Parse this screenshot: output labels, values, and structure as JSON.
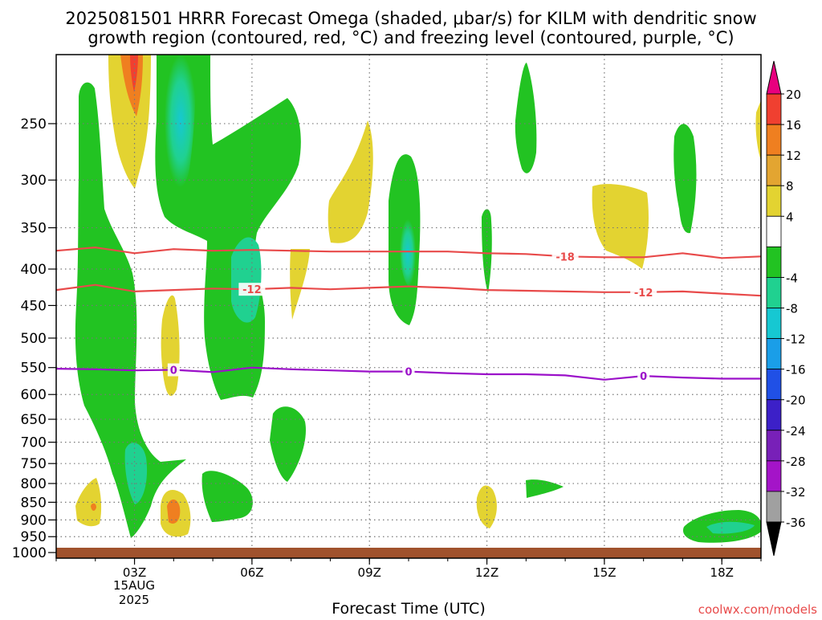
{
  "chart_data": {
    "type": "heatmap",
    "title_line1": "2025081501 HRRR Forecast Omega (shaded, μbar/s) for KILM with dendritic snow",
    "title_line2": "growth region (contoured, red, °C) and freezing level (contoured, purple, °C)",
    "xlabel": "Forecast Time (UTC)",
    "ylabel": "",
    "x_ticks": [
      {
        "hour": 3,
        "label": "03Z"
      },
      {
        "hour": 6,
        "label": "06Z"
      },
      {
        "hour": 9,
        "label": "09Z"
      },
      {
        "hour": 12,
        "label": "12Z"
      },
      {
        "hour": 15,
        "label": "15Z"
      },
      {
        "hour": 18,
        "label": "18Z"
      }
    ],
    "date_label_1": "15AUG",
    "date_label_2": "2025",
    "xlim_hours": [
      1,
      19
    ],
    "y_ticks": [
      250,
      300,
      350,
      400,
      450,
      500,
      550,
      600,
      650,
      700,
      750,
      800,
      850,
      900,
      950,
      1000
    ],
    "ylim_hpa": [
      1000,
      200
    ],
    "y_scale": "log",
    "grid": true,
    "colorbar": {
      "labels": [
        "20",
        "16",
        "12",
        "8",
        "4",
        "-4",
        "-8",
        "-12",
        "-16",
        "-20",
        "-24",
        "-28",
        "-32",
        "-36"
      ],
      "colors": [
        "#e8007e",
        "#f04030",
        "#ef7f20",
        "#e3a531",
        "#e3d331",
        "#ffffff",
        "#22c322",
        "#20d190",
        "#16c8d2",
        "#1a9ee8",
        "#2050e6",
        "#3c20c8",
        "#7820b8",
        "#a414c8",
        "#a0a0a0",
        "#000000"
      ]
    },
    "isotherms": [
      {
        "kind": "dgz",
        "value_label": "-18",
        "color": "#e84a4a",
        "points": [
          [
            1,
            377
          ],
          [
            2,
            373
          ],
          [
            3,
            380
          ],
          [
            4,
            375
          ],
          [
            5,
            377
          ],
          [
            6,
            376
          ],
          [
            7,
            377
          ],
          [
            8,
            378
          ],
          [
            9,
            378
          ],
          [
            10,
            378
          ],
          [
            11,
            378
          ],
          [
            12,
            380
          ],
          [
            13,
            381
          ],
          [
            14,
            384
          ],
          [
            15,
            385
          ],
          [
            16,
            385
          ],
          [
            17,
            380
          ],
          [
            18,
            386
          ],
          [
            19,
            384
          ]
        ],
        "labels_at_hour": [
          14
        ]
      },
      {
        "kind": "dgz",
        "value_label": "-12",
        "color": "#e84a4a",
        "points": [
          [
            1,
            428
          ],
          [
            2,
            421
          ],
          [
            3,
            430
          ],
          [
            4,
            428
          ],
          [
            5,
            426
          ],
          [
            6,
            427
          ],
          [
            7,
            425
          ],
          [
            8,
            427
          ],
          [
            9,
            425
          ],
          [
            10,
            423
          ],
          [
            11,
            425
          ],
          [
            12,
            428
          ],
          [
            13,
            429
          ],
          [
            14,
            430
          ],
          [
            15,
            431
          ],
          [
            16,
            431
          ],
          [
            17,
            430
          ],
          [
            18,
            433
          ],
          [
            19,
            436
          ]
        ],
        "labels_at_hour": [
          6,
          16
        ]
      },
      {
        "kind": "freezing_level",
        "value_label": "0",
        "color": "#9b10c9",
        "points": [
          [
            1,
            552
          ],
          [
            2,
            553
          ],
          [
            3,
            555
          ],
          [
            4,
            554
          ],
          [
            5,
            558
          ],
          [
            6,
            550
          ],
          [
            7,
            553
          ],
          [
            8,
            555
          ],
          [
            9,
            557
          ],
          [
            10,
            557
          ],
          [
            11,
            560
          ],
          [
            12,
            562
          ],
          [
            13,
            562
          ],
          [
            14,
            564
          ],
          [
            15,
            572
          ],
          [
            16,
            565
          ],
          [
            17,
            568
          ],
          [
            18,
            570
          ],
          [
            19,
            570
          ]
        ],
        "labels_at_hour": [
          4,
          10,
          16
        ]
      }
    ],
    "surface_band_color": "#a0522d"
  },
  "watermark": "coolwx.com/models"
}
